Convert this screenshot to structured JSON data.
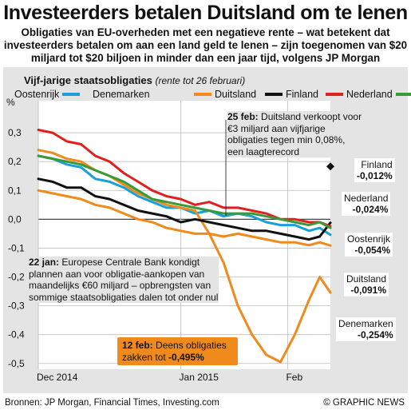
{
  "header": {
    "title": "Investeerders betalen Duitsland om te lenen",
    "subtitle": "Obligaties van EU-overheden met een negatieve rente – wat betekent dat investeerders betalen om aan een land geld te lenen – zijn toegenomen van $20 miljard tot $20 biljoen in minder dan een jaar tijd, volgens JP Morgan"
  },
  "chart_title": {
    "main": "Vijf-jarige staatsobligaties",
    "note": "(rente tot 26 februari)"
  },
  "y_unit": "%",
  "annotations": {
    "feb25_date": "25 feb:",
    "feb25_text": "Duitsland verkoopt voor €3 miljard aan vijfjarige obligaties tegen min 0,08%, een laagterecord",
    "jan22_date": "22 jan:",
    "jan22_text": "Europese Centrale Bank kondigt plannen aan voor obligatie-aankopen van maandelijks €60 miljard – opbrengsten van sommige staatsobligaties dalen tot onder nul",
    "feb12_date": "12 feb:",
    "feb12_text": "Deens obligaties zakken tot",
    "feb12_value": "-0,495%"
  },
  "end_labels": {
    "finland_name": "Finland",
    "finland_value": "-0,012%",
    "nederland_name": "Nederland",
    "nederland_value": "-0,024%",
    "oostenrijk_name": "Oostenrijk",
    "oostenrijk_value": "-0,054%",
    "duitsland_name": "Duitsland",
    "duitsland_value": "-0,091%",
    "denemarken_name": "Denemarken",
    "denemarken_value": "-0,254%"
  },
  "footer": {
    "sources": "Bronnen: JP Morgan, Financial Times, Investing.com",
    "credit": "© GRAPHIC NEWS"
  },
  "colors": {
    "oostenrijk": "#1aa0d8",
    "denemarken": "#f08a1c",
    "duitsland": "#f08a1c",
    "finland": "#111111",
    "nederland": "#e02020",
    "groen": "#3a9a3a"
  },
  "chart_data": {
    "type": "line",
    "ylim": [
      -0.52,
      0.4
    ],
    "yticks": [
      0.3,
      0.2,
      0.1,
      0.0,
      -0.1,
      -0.2,
      -0.3,
      -0.4,
      -0.5
    ],
    "ytick_labels": [
      "0,3",
      "0,2",
      "0,1",
      "0,0",
      "-0,1",
      "-0,2",
      "-0,3",
      "-0,4",
      "-0,5"
    ],
    "xlim": [
      0,
      82
    ],
    "xticks": [
      {
        "x": 0,
        "label": "Dec 2014"
      },
      {
        "x": 40,
        "label": "Jan 2015"
      },
      {
        "x": 70,
        "label": "Feb"
      }
    ],
    "series": [
      {
        "name": "Oostenrijk",
        "color_key": "oostenrijk",
        "x": [
          0,
          4,
          8,
          12,
          16,
          20,
          24,
          28,
          32,
          36,
          40,
          44,
          48,
          52,
          56,
          60,
          64,
          68,
          72,
          76,
          79,
          82
        ],
        "y": [
          0.22,
          0.21,
          0.19,
          0.18,
          0.14,
          0.13,
          0.11,
          0.08,
          0.06,
          0.04,
          0.04,
          0.02,
          0.03,
          0.01,
          0.02,
          0.01,
          -0.01,
          -0.02,
          -0.02,
          -0.04,
          -0.03,
          -0.054
        ]
      },
      {
        "name": "Denemarken",
        "color_key": "denemarken",
        "x": [
          0,
          4,
          8,
          12,
          16,
          20,
          24,
          28,
          32,
          36,
          40,
          44,
          48,
          52,
          56,
          60,
          64,
          68,
          72,
          76,
          79,
          82
        ],
        "y": [
          0.24,
          0.23,
          0.21,
          0.2,
          0.17,
          0.15,
          0.12,
          0.09,
          0.07,
          0.05,
          0.04,
          0.03,
          -0.05,
          -0.15,
          -0.3,
          -0.4,
          -0.47,
          -0.495,
          -0.4,
          -0.28,
          -0.2,
          -0.254
        ]
      },
      {
        "name": "Duitsland",
        "color_key": "duitsland",
        "x": [
          0,
          4,
          8,
          12,
          16,
          20,
          24,
          28,
          32,
          36,
          40,
          44,
          48,
          52,
          56,
          60,
          64,
          68,
          72,
          76,
          79,
          82
        ],
        "y": [
          0.1,
          0.09,
          0.08,
          0.07,
          0.05,
          0.04,
          0.02,
          0.0,
          -0.01,
          -0.03,
          -0.04,
          -0.05,
          -0.05,
          -0.06,
          -0.05,
          -0.06,
          -0.07,
          -0.08,
          -0.08,
          -0.09,
          -0.08,
          -0.091
        ]
      },
      {
        "name": "Finland",
        "color_key": "finland",
        "x": [
          0,
          4,
          8,
          12,
          16,
          20,
          24,
          28,
          32,
          36,
          40,
          44,
          48,
          52,
          56,
          60,
          64,
          68,
          72,
          76,
          79,
          82
        ],
        "y": [
          0.14,
          0.13,
          0.11,
          0.11,
          0.08,
          0.07,
          0.05,
          0.03,
          0.02,
          0.01,
          -0.01,
          0.0,
          -0.01,
          -0.02,
          -0.03,
          -0.04,
          -0.04,
          -0.05,
          -0.06,
          -0.07,
          -0.06,
          -0.012
        ]
      },
      {
        "name": "Nederland",
        "color_key": "nederland",
        "x": [
          0,
          4,
          8,
          12,
          16,
          20,
          24,
          28,
          32,
          36,
          40,
          44,
          48,
          52,
          56,
          60,
          64,
          68,
          72,
          76,
          79,
          82
        ],
        "y": [
          0.31,
          0.3,
          0.27,
          0.26,
          0.22,
          0.2,
          0.16,
          0.13,
          0.1,
          0.08,
          0.07,
          0.05,
          0.06,
          0.04,
          0.04,
          0.03,
          0.02,
          0.0,
          0.0,
          -0.01,
          -0.01,
          -0.024
        ]
      },
      {
        "name": "",
        "color_key": "groen",
        "x": [
          0,
          4,
          8,
          12,
          16,
          20,
          24,
          28,
          32,
          36,
          40,
          44,
          48,
          52,
          56,
          60,
          64,
          68,
          72,
          76,
          79,
          82
        ],
        "y": [
          0.22,
          0.21,
          0.2,
          0.19,
          0.17,
          0.15,
          0.13,
          0.1,
          0.07,
          0.06,
          0.05,
          0.04,
          0.03,
          0.02,
          0.02,
          0.02,
          0.01,
          0.0,
          -0.01,
          -0.02,
          -0.01,
          -0.03
        ]
      }
    ]
  }
}
